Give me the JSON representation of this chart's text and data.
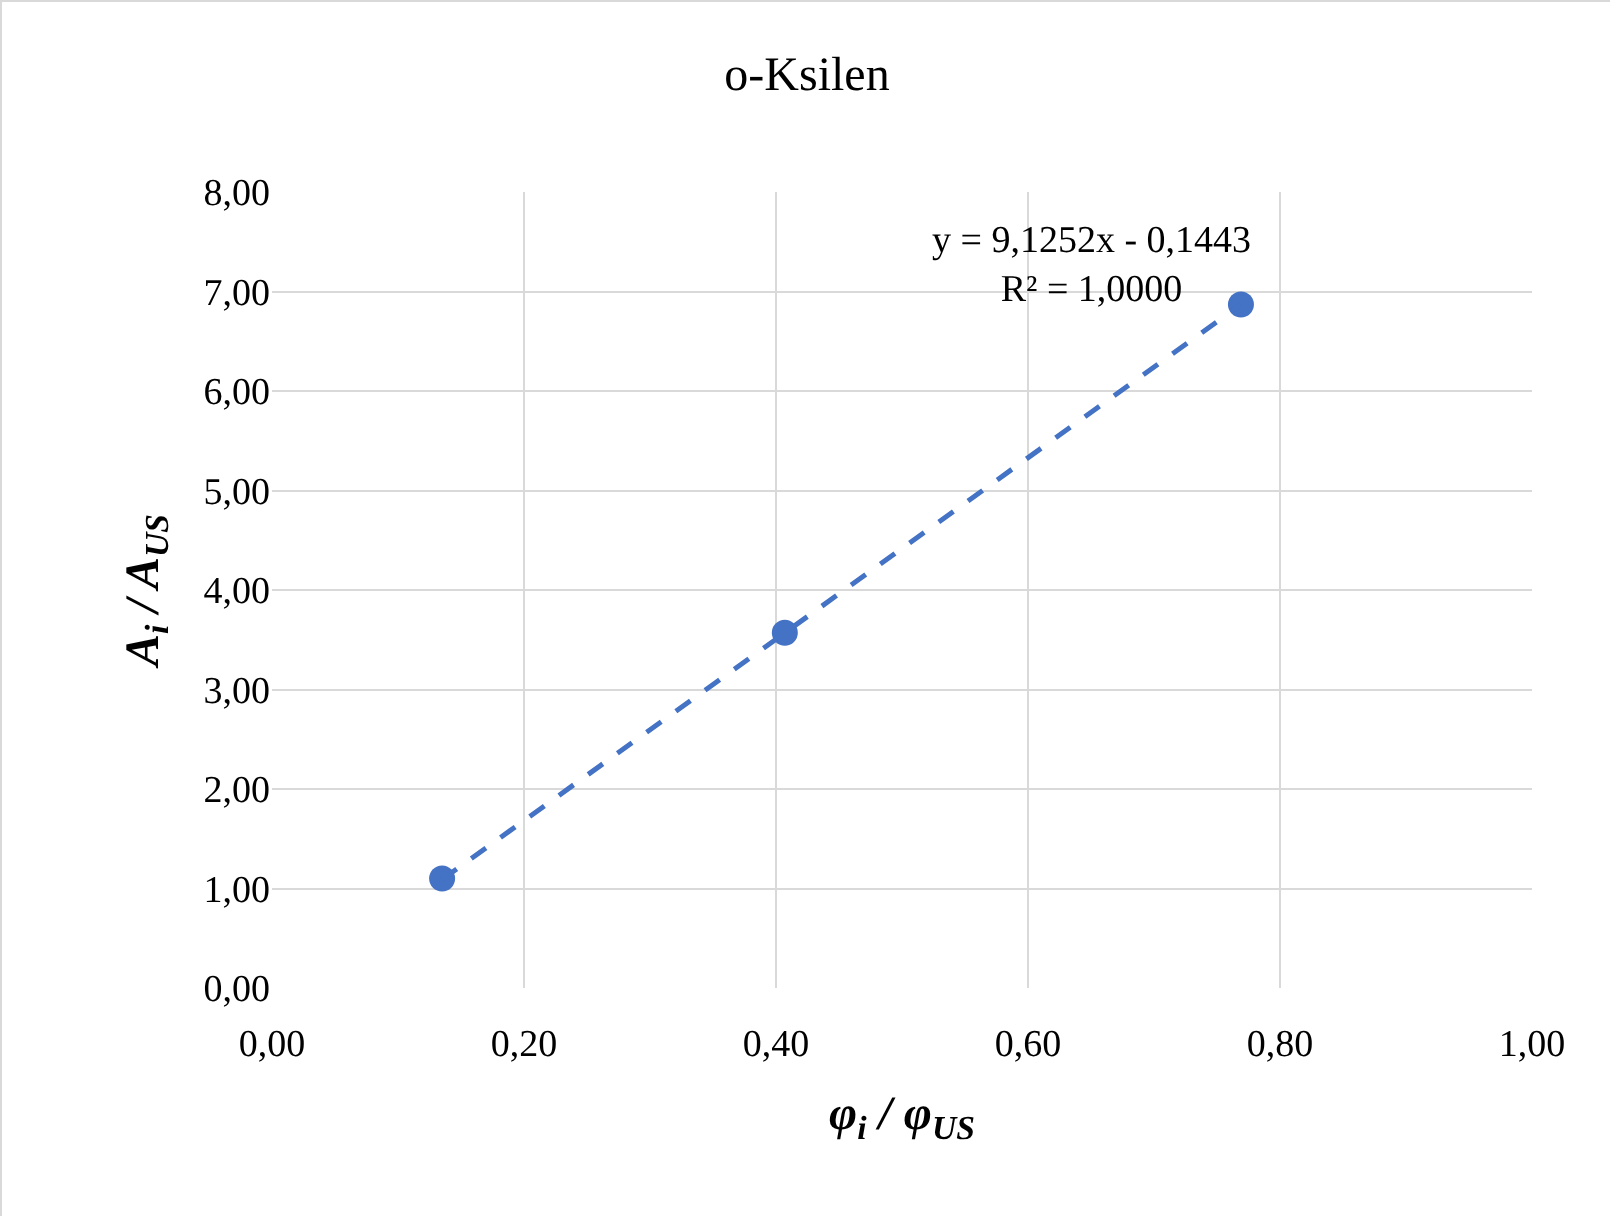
{
  "chart_data": {
    "type": "scatter",
    "title": "o-Ksilen",
    "xlabel": "φ$_{i}$ / φ$_{US}$",
    "ylabel": "A$_{i}$ / A$_{US}$",
    "series": [
      {
        "color": "#4472c4",
        "x": [
          0.135,
          0.407,
          0.769
        ],
        "values": [
          1.1,
          3.57,
          6.87
        ],
        "marker": "circle"
      },
      {
        "type": "line",
        "color": "#4472c4",
        "x": [
          0.135,
          0.769
        ],
        "values": [
          1.09,
          6.87
        ],
        "line_style": "dashed",
        "marker": "none"
      }
    ],
    "annotations": [
      "y = 9,1252x - 0,1443",
      "R² = 1,0000"
    ],
    "xlim": [
      0,
      1
    ],
    "ylim": [
      0,
      8
    ],
    "xticks": [
      {
        "value": 0,
        "label": "0,00"
      },
      {
        "value": 0.2,
        "label": "0,20"
      },
      {
        "value": 0.4,
        "label": "0,40"
      },
      {
        "value": 0.6,
        "label": "0,60"
      },
      {
        "value": 0.8,
        "label": "0,80"
      },
      {
        "value": 1,
        "label": "1,00"
      }
    ],
    "yticks": [
      {
        "value": 0,
        "label": "0,00"
      },
      {
        "value": 1,
        "label": "1,00"
      },
      {
        "value": 2,
        "label": "2,00"
      },
      {
        "value": 3,
        "label": "3,00"
      },
      {
        "value": 4,
        "label": "4,00"
      },
      {
        "value": 5,
        "label": "5,00"
      },
      {
        "value": 6,
        "label": "6,00"
      },
      {
        "value": 7,
        "label": "7,00"
      },
      {
        "value": 8,
        "label": "8,00"
      }
    ],
    "grid": true
  }
}
